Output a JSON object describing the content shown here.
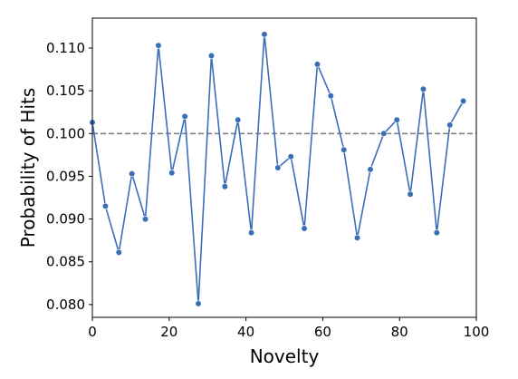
{
  "chart_data": {
    "type": "line",
    "title": "",
    "xlabel": "Novelty",
    "ylabel": "Probability of Hits",
    "xlim": [
      0,
      100
    ],
    "ylim": [
      0.0785,
      0.1135
    ],
    "xticks": [
      0,
      20,
      40,
      60,
      80,
      100
    ],
    "xtick_labels": [
      "0",
      "20",
      "40",
      "60",
      "80",
      "100"
    ],
    "yticks": [
      0.08,
      0.085,
      0.09,
      0.095,
      0.1,
      0.105,
      0.11
    ],
    "ytick_labels": [
      "0.080",
      "0.085",
      "0.090",
      "0.095",
      "0.100",
      "0.105",
      "0.110"
    ],
    "grid": false,
    "legend": false,
    "reference_line": {
      "y": 0.1,
      "style": "dashed",
      "color": "#808080"
    },
    "series": [
      {
        "color": "#3a6fb8",
        "marker": "circle",
        "x": [
          0,
          3.4,
          6.9,
          10.3,
          13.8,
          17.2,
          20.7,
          24.1,
          27.6,
          31.0,
          34.5,
          37.9,
          41.4,
          44.8,
          48.3,
          51.7,
          55.2,
          58.6,
          62.1,
          65.5,
          69.0,
          72.4,
          75.9,
          79.3,
          82.8,
          86.2,
          89.7,
          93.1,
          96.6
        ],
        "y": [
          0.1013,
          0.0915,
          0.0861,
          0.0953,
          0.09,
          0.1103,
          0.0954,
          0.102,
          0.0801,
          0.1091,
          0.0938,
          0.1016,
          0.0884,
          0.1116,
          0.096,
          0.0973,
          0.0889,
          0.1081,
          0.1044,
          0.0981,
          0.0878,
          0.0958,
          0.1,
          0.1016,
          0.0929,
          0.1052,
          0.0884,
          0.101,
          0.1038
        ]
      }
    ]
  }
}
